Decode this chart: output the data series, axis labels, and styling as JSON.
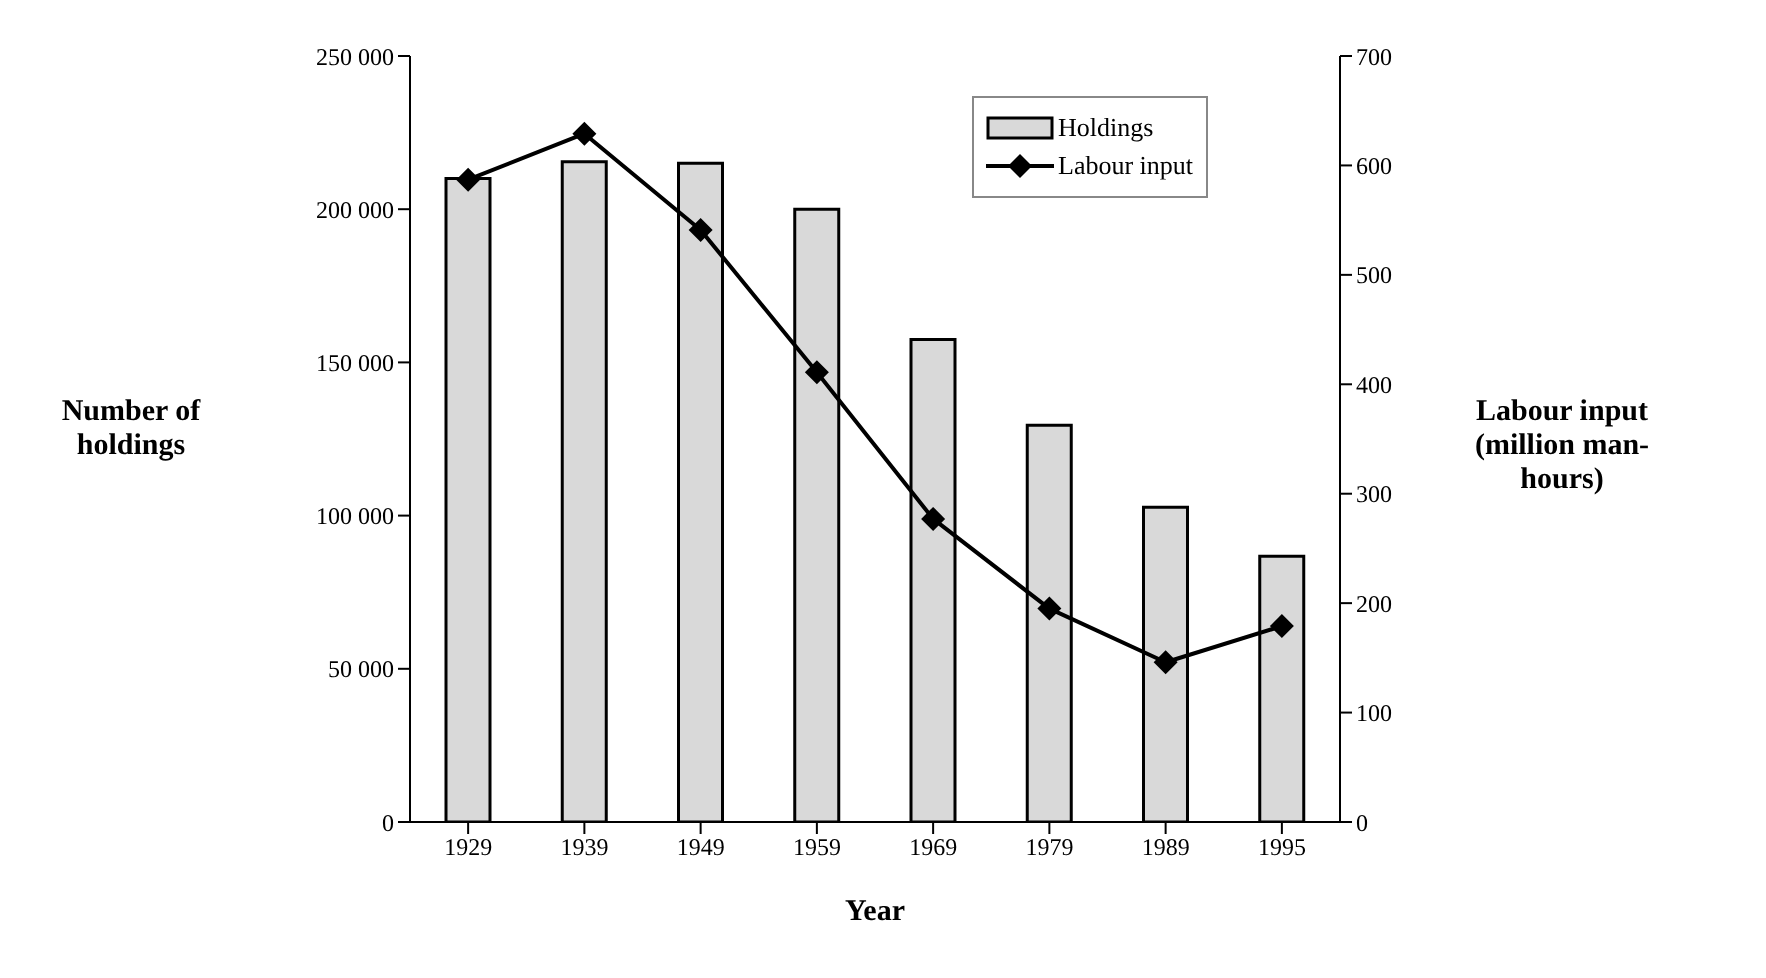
{
  "chart_data": {
    "type": "bar",
    "xlabel": "Year",
    "ylabel": "Number of holdings",
    "y2label": "Labour input (million man-hours)",
    "categories": [
      "1929",
      "1939",
      "1949",
      "1959",
      "1969",
      "1979",
      "1989",
      "1995"
    ],
    "series": [
      {
        "name": "Holdings",
        "color": "#d9d9d9",
        "values": [
          210000,
          215500,
          215000,
          200000,
          157500,
          129500,
          102700,
          86700
        ]
      },
      {
        "name": "Labour input",
        "type": "line",
        "axis": "y2",
        "color": "#000000",
        "marker": "diamond",
        "values": [
          587,
          629,
          541,
          411,
          277,
          195,
          146,
          179
        ]
      }
    ],
    "ylim": [
      0,
      250000
    ],
    "yticks": [
      0,
      {
        "value": 50000,
        "label": "50 000"
      },
      {
        "value": 100000,
        "label": "100 000"
      },
      {
        "value": 150000,
        "label": "150 000"
      },
      {
        "value": 200000,
        "label": "200 000"
      },
      {
        "value": 250000,
        "label": "250 000"
      }
    ],
    "y2lim": [
      0,
      700
    ],
    "y2ticks": [
      0,
      100,
      200,
      300,
      400,
      500,
      600,
      700
    ],
    "legend": "top right",
    "grid": false
  }
}
